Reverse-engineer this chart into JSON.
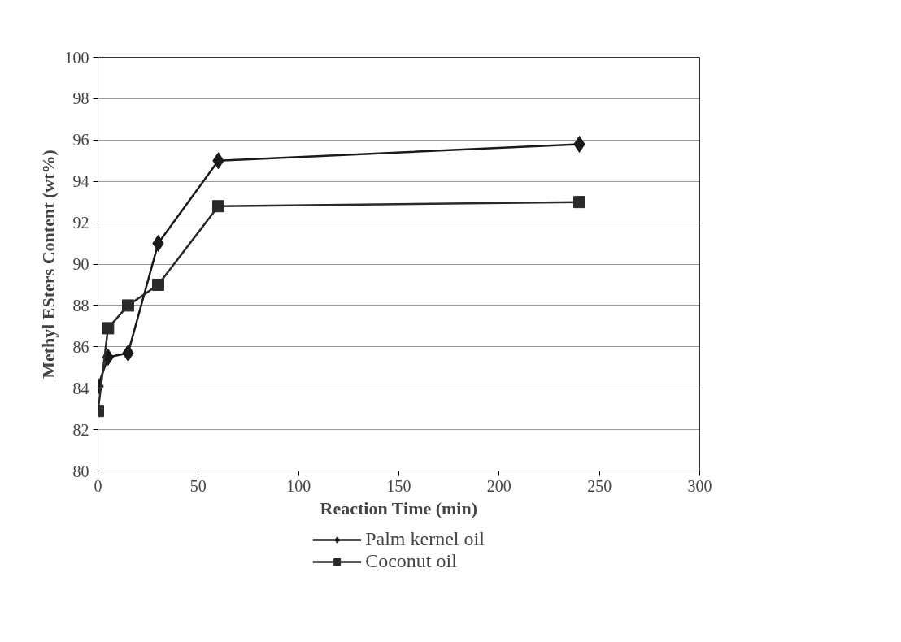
{
  "chart_data": {
    "type": "line",
    "xlabel": "Reaction Time (min)",
    "ylabel": "Methyl ESters Content (wt%)",
    "xlim": [
      0,
      300
    ],
    "xticks": [
      0,
      50,
      100,
      150,
      200,
      250,
      300
    ],
    "ylim": [
      80,
      100
    ],
    "yticks": [
      80,
      82,
      84,
      86,
      88,
      90,
      92,
      94,
      96,
      98,
      100
    ],
    "grid": "y",
    "legend": "bottom",
    "line_style": "solid",
    "series": [
      {
        "name": "Palm kernel oil",
        "color": "#1a1a1a",
        "marker": "diamond",
        "x": [
          0,
          5,
          15,
          30,
          60,
          240
        ],
        "values": [
          84.1,
          85.5,
          85.7,
          91.0,
          95.0,
          95.8
        ]
      },
      {
        "name": "Coconut oil",
        "color": "#2a2a2a",
        "marker": "square",
        "x": [
          0,
          5,
          15,
          30,
          60,
          240
        ],
        "values": [
          82.9,
          86.9,
          88.0,
          89.0,
          92.8,
          93.0
        ]
      }
    ]
  }
}
